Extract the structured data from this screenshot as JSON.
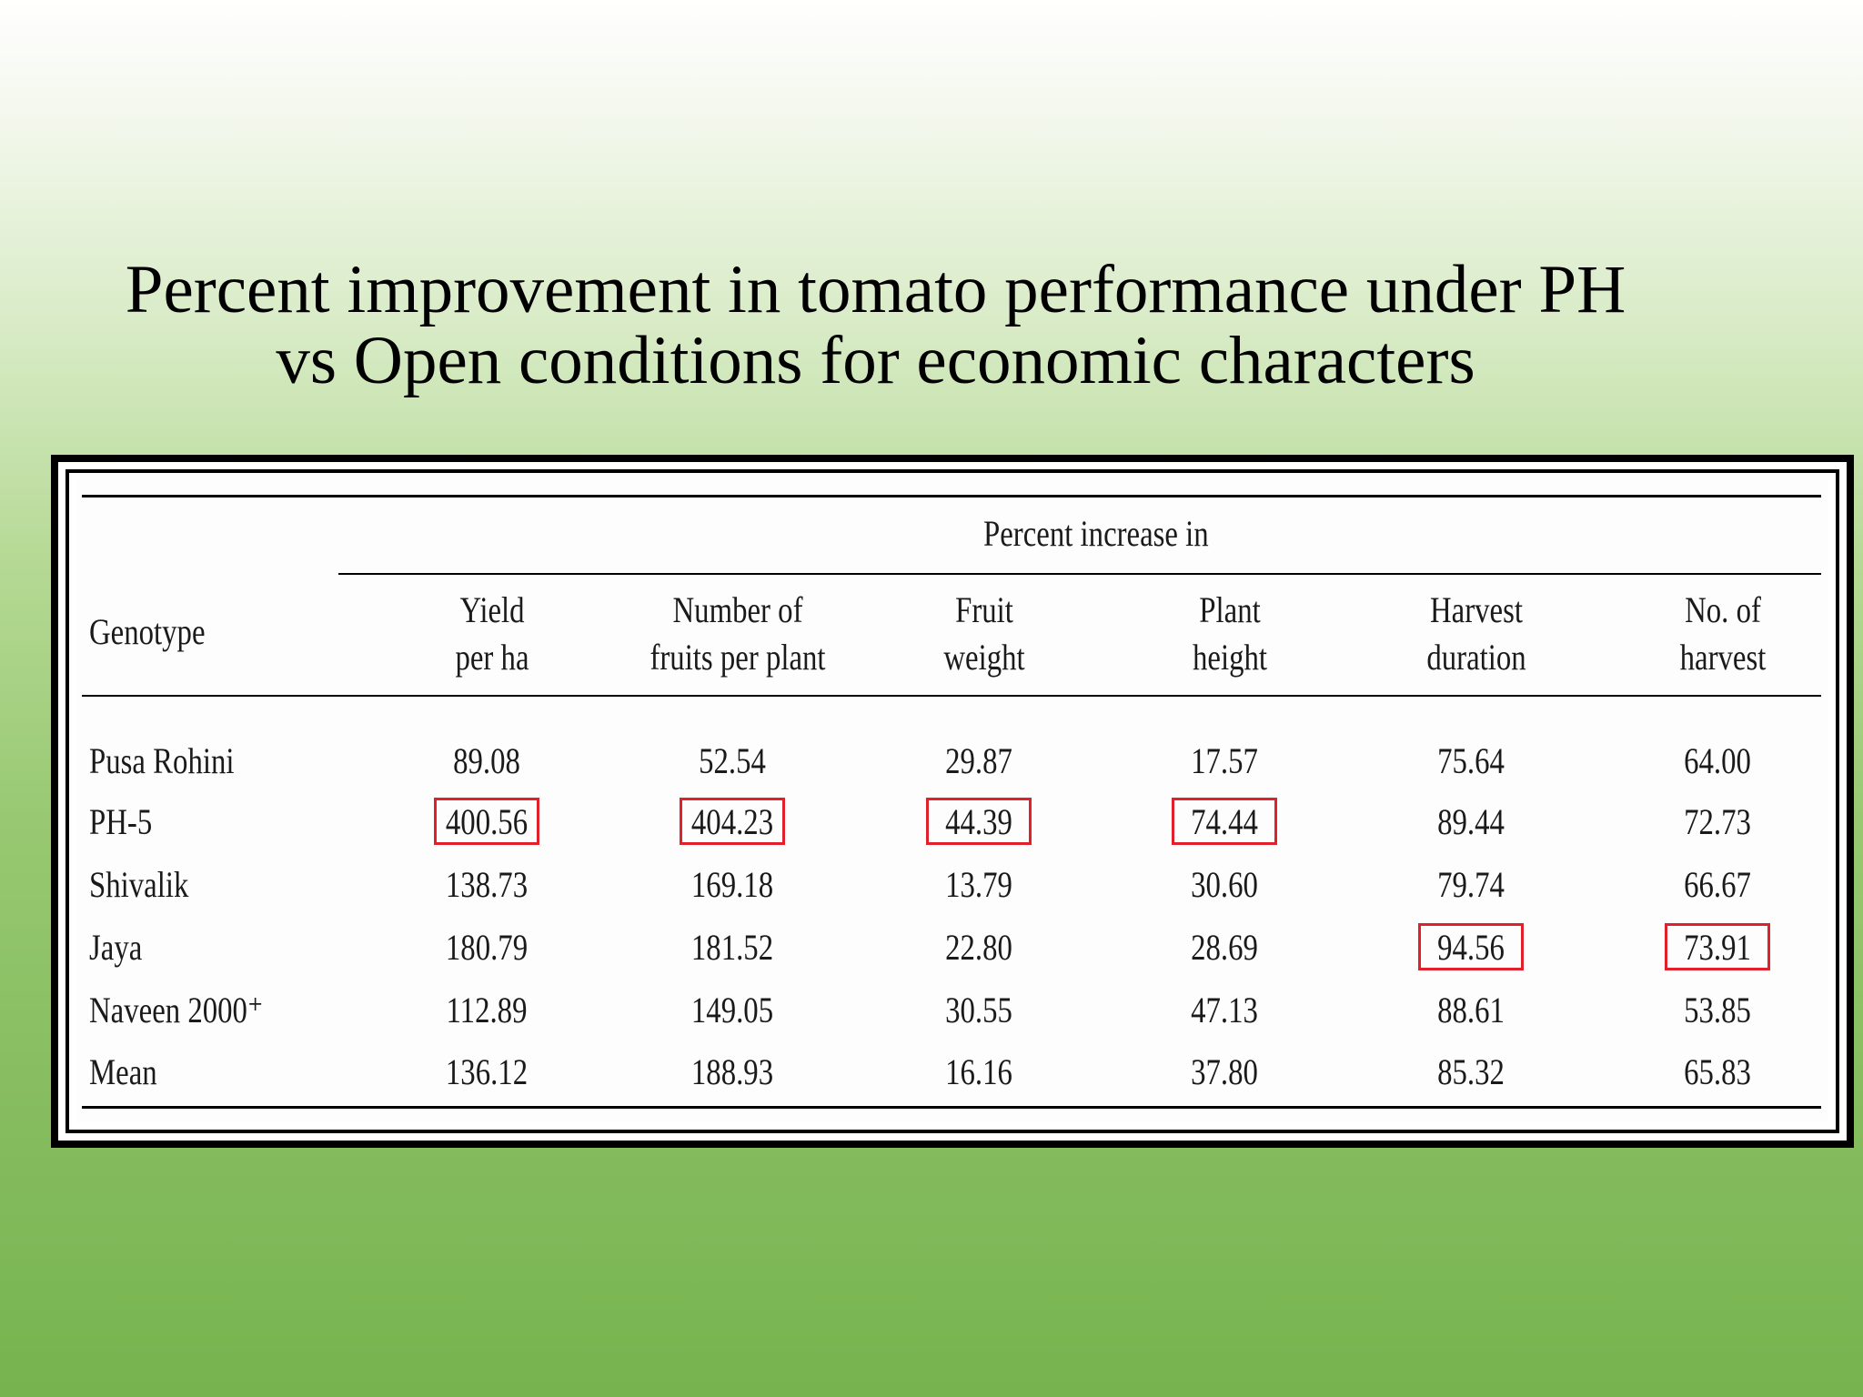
{
  "slide": {
    "title_line1": "Percent improvement in tomato performance under PH",
    "title_line2": "vs Open conditions for economic characters"
  },
  "table": {
    "group_header": "Percent increase in",
    "genotype_header": "Genotype",
    "columns": [
      {
        "line1": "Yield",
        "line2": "per ha"
      },
      {
        "line1": "Number of",
        "line2": "fruits per plant"
      },
      {
        "line1": "Fruit",
        "line2": "weight"
      },
      {
        "line1": "Plant",
        "line2": "height"
      },
      {
        "line1": "Harvest",
        "line2": "duration"
      },
      {
        "line1": "No. of",
        "line2": "harvest"
      }
    ],
    "rows": [
      {
        "genotype": "Pusa Rohini",
        "values": [
          "89.08",
          "52.54",
          "29.87",
          "17.57",
          "75.64",
          "64.00"
        ]
      },
      {
        "genotype": "PH-5",
        "values": [
          "400.56",
          "404.23",
          "44.39",
          "74.44",
          "89.44",
          "72.73"
        ]
      },
      {
        "genotype": "Shivalik",
        "values": [
          "138.73",
          "169.18",
          "13.79",
          "30.60",
          "79.74",
          "66.67"
        ]
      },
      {
        "genotype": "Jaya",
        "values": [
          "180.79",
          "181.52",
          "22.80",
          "28.69",
          "94.56",
          "73.91"
        ]
      },
      {
        "genotype": "Naveen 2000⁺",
        "values": [
          "112.89",
          "149.05",
          "30.55",
          "47.13",
          "88.61",
          "53.85"
        ]
      },
      {
        "genotype": "Mean",
        "values": [
          "136.12",
          "188.93",
          "16.16",
          "37.80",
          "85.32",
          "65.83"
        ]
      }
    ],
    "highlighted_cells": [
      {
        "row": 1,
        "col": 0
      },
      {
        "row": 1,
        "col": 1
      },
      {
        "row": 1,
        "col": 2
      },
      {
        "row": 1,
        "col": 3
      },
      {
        "row": 3,
        "col": 4
      },
      {
        "row": 3,
        "col": 5
      }
    ],
    "highlight_color": "#e0202a"
  }
}
